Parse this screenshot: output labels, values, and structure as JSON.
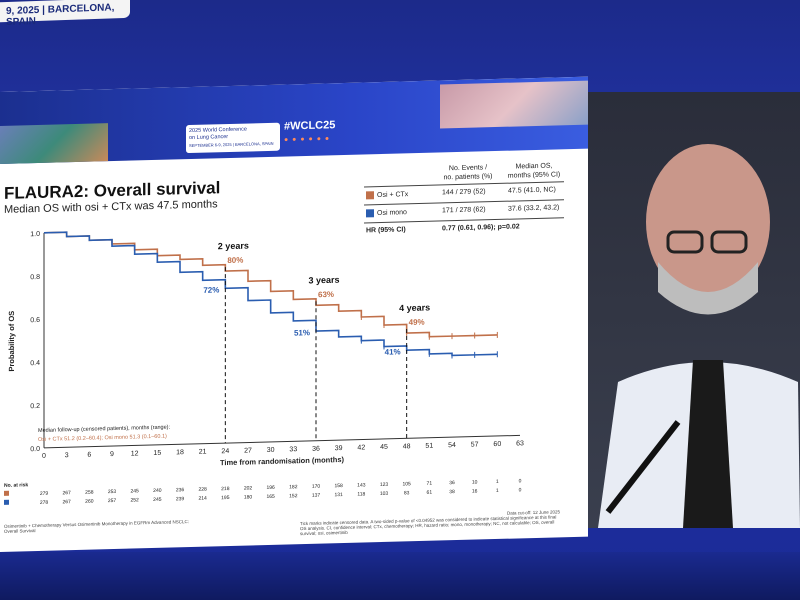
{
  "banner": {
    "text": "9, 2025 | BARCELONA, SPAIN"
  },
  "header": {
    "conf_line1": "2025 World Conference",
    "conf_line2": "on Lung Cancer",
    "conf_line3": "SEPTEMBER 6-9, 2025 | BARCELONA, SPAIN",
    "hashtag": "#WCLC25"
  },
  "slide": {
    "title": "FLAURA2: Overall survival",
    "subtitle": "Median OS with osi + CTx was 47.5 months",
    "col_events": "No. Events /",
    "col_events2": "no. patients (%)",
    "col_median": "Median OS,",
    "col_median2": "months (95% CI)",
    "rows": [
      {
        "label": "Osi + CTx",
        "events": "144 / 279 (52)",
        "median": "47.5 (41.0, NC)",
        "color": "#c0704a"
      },
      {
        "label": "Osi mono",
        "events": "171 / 278 (62)",
        "median": "37.6 (33.2, 43.2)",
        "color": "#2a5db0"
      }
    ],
    "hr_label": "HR (95% CI)",
    "hr_value": "0.77 (0.61, 0.96); p=0.02",
    "footer_left": "Osimertinib + Chemotherapy Versus Osimertinib Monotherapy in EGFRm Advanced NSCLC: Overall Survival",
    "footer_right_1": "Data cut-off: 12 June 2025",
    "footer_right_2": "Tick marks indicate censored data. A two-sided p-value of <0.04952 was considered to indicate statistical significance at this final OS analysis. CI, confidence interval; CTx, chemotherapy; HR, hazard ratio; mono, monotherapy; NC, not calculable; OS, overall survival; osi, osimertinib"
  },
  "chart_data": {
    "type": "line",
    "xlabel": "Time from randomisation (months)",
    "ylabel": "Probability of OS",
    "xlim": [
      0,
      63
    ],
    "ylim": [
      0.0,
      1.0
    ],
    "xticks": [
      0,
      3,
      6,
      9,
      12,
      15,
      18,
      21,
      24,
      27,
      30,
      33,
      36,
      39,
      42,
      45,
      48,
      51,
      54,
      57,
      60,
      63
    ],
    "yticks": [
      "0.0",
      "0.2",
      "0.4",
      "0.6",
      "0.8",
      "1.0"
    ],
    "series": [
      {
        "name": "Osi + CTx",
        "color": "#c0704a",
        "points": [
          [
            0,
            1.0
          ],
          [
            3,
            0.98
          ],
          [
            6,
            0.96
          ],
          [
            9,
            0.94
          ],
          [
            12,
            0.91
          ],
          [
            15,
            0.88
          ],
          [
            18,
            0.86
          ],
          [
            21,
            0.83
          ],
          [
            24,
            0.8
          ],
          [
            27,
            0.75
          ],
          [
            30,
            0.7
          ],
          [
            33,
            0.66
          ],
          [
            36,
            0.63
          ],
          [
            39,
            0.6
          ],
          [
            42,
            0.57
          ],
          [
            45,
            0.53
          ],
          [
            48,
            0.49
          ],
          [
            51,
            0.47
          ],
          [
            54,
            0.47
          ],
          [
            57,
            0.47
          ],
          [
            60,
            0.47
          ]
        ]
      },
      {
        "name": "Osi mono",
        "color": "#2a5db0",
        "points": [
          [
            0,
            1.0
          ],
          [
            3,
            0.98
          ],
          [
            6,
            0.96
          ],
          [
            9,
            0.93
          ],
          [
            12,
            0.89
          ],
          [
            15,
            0.85
          ],
          [
            18,
            0.8
          ],
          [
            21,
            0.76
          ],
          [
            24,
            0.72
          ],
          [
            27,
            0.66
          ],
          [
            30,
            0.6
          ],
          [
            33,
            0.56
          ],
          [
            36,
            0.51
          ],
          [
            39,
            0.48
          ],
          [
            42,
            0.46
          ],
          [
            45,
            0.43
          ],
          [
            48,
            0.41
          ],
          [
            51,
            0.39
          ],
          [
            54,
            0.38
          ],
          [
            57,
            0.38
          ],
          [
            60,
            0.38
          ]
        ]
      }
    ],
    "annotations": [
      {
        "x": 24,
        "label_top": "2 years",
        "osi_ctx": "80%",
        "osi_mono": "72%"
      },
      {
        "x": 36,
        "label_top": "3 years",
        "osi_ctx": "63%",
        "osi_mono": "51%"
      },
      {
        "x": 48,
        "label_top": "4 years",
        "osi_ctx": "49%",
        "osi_mono": "41%"
      }
    ],
    "followup_title": "Median follow-up (censored patients), months (range):",
    "followup_text": "Osi + CTx 51.2 (0.2–60.4); Osi mono 51.3 (0.1–60.1)",
    "at_risk_label": "No. at risk",
    "at_risk": [
      {
        "values": [
          "279",
          "267",
          "258",
          "253",
          "245",
          "240",
          "236",
          "228",
          "218",
          "202",
          "196",
          "182",
          "170",
          "158",
          "143",
          "123",
          "105",
          "71",
          "36",
          "10",
          "1",
          "0"
        ]
      },
      {
        "values": [
          "278",
          "267",
          "260",
          "257",
          "252",
          "245",
          "239",
          "214",
          "195",
          "180",
          "165",
          "152",
          "137",
          "131",
          "118",
          "103",
          "83",
          "61",
          "38",
          "16",
          "1",
          "0"
        ]
      }
    ]
  }
}
